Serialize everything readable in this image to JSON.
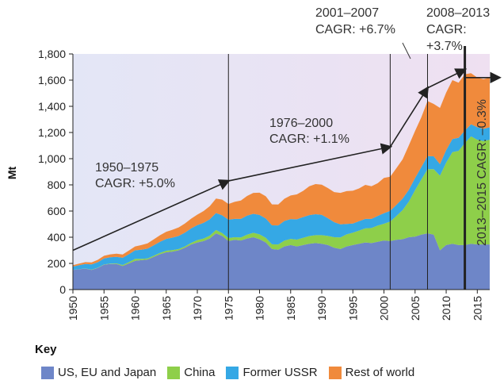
{
  "chart_data": {
    "type": "area",
    "stacked": true,
    "xlabel": "",
    "ylabel": "Mt",
    "xlim": [
      1950,
      2017
    ],
    "ylim": [
      0,
      1800
    ],
    "yticks": [
      0,
      200,
      400,
      600,
      800,
      1000,
      1200,
      1400,
      1600,
      1800
    ],
    "ytick_labels": [
      "0",
      "200",
      "400",
      "600",
      "800",
      "1,000",
      "1,200",
      "1,400",
      "1,600",
      "1,800"
    ],
    "xticks": [
      1950,
      1955,
      1960,
      1965,
      1970,
      1975,
      1980,
      1985,
      1990,
      1995,
      2000,
      2005,
      2010,
      2015
    ],
    "x": [
      1950,
      1951,
      1952,
      1953,
      1954,
      1955,
      1956,
      1957,
      1958,
      1959,
      1960,
      1961,
      1962,
      1963,
      1964,
      1965,
      1966,
      1967,
      1968,
      1969,
      1970,
      1971,
      1972,
      1973,
      1974,
      1975,
      1976,
      1977,
      1978,
      1979,
      1980,
      1981,
      1982,
      1983,
      1984,
      1985,
      1986,
      1987,
      1988,
      1989,
      1990,
      1991,
      1992,
      1993,
      1994,
      1995,
      1996,
      1997,
      1998,
      1999,
      2000,
      2001,
      2002,
      2003,
      2004,
      2005,
      2006,
      2007,
      2008,
      2009,
      2010,
      2011,
      2012,
      2013,
      2014,
      2015,
      2016,
      2017
    ],
    "series": [
      {
        "name": "US, EU and Japan",
        "color": "#6e86c8",
        "values": [
          150,
          155,
          160,
          150,
          165,
          190,
          195,
          195,
          180,
          200,
          220,
          225,
          230,
          250,
          270,
          285,
          290,
          300,
          320,
          345,
          360,
          370,
          390,
          430,
          410,
          370,
          380,
          375,
          390,
          400,
          385,
          360,
          310,
          305,
          330,
          340,
          330,
          340,
          350,
          355,
          350,
          340,
          320,
          310,
          330,
          340,
          350,
          360,
          355,
          365,
          375,
          370,
          380,
          385,
          400,
          405,
          420,
          430,
          420,
          300,
          340,
          350,
          340,
          340,
          350,
          345,
          345,
          345
        ]
      },
      {
        "name": "China",
        "color": "#8ecf4a",
        "values": [
          1,
          1,
          1,
          2,
          2,
          3,
          4,
          5,
          8,
          10,
          15,
          10,
          8,
          9,
          10,
          12,
          12,
          10,
          10,
          12,
          18,
          20,
          22,
          25,
          22,
          24,
          20,
          23,
          30,
          34,
          37,
          35,
          36,
          40,
          44,
          47,
          52,
          56,
          59,
          61,
          66,
          70,
          80,
          89,
          92,
          95,
          101,
          108,
          115,
          124,
          128,
          150,
          182,
          222,
          272,
          355,
          420,
          490,
          500,
          570,
          630,
          700,
          720,
          780,
          820,
          800,
          790,
          800
        ]
      },
      {
        "name": "Former USSR",
        "color": "#35a8e5",
        "values": [
          25,
          30,
          35,
          40,
          42,
          45,
          48,
          50,
          55,
          60,
          65,
          70,
          75,
          80,
          85,
          90,
          95,
          100,
          105,
          110,
          115,
          120,
          125,
          130,
          135,
          140,
          140,
          142,
          145,
          145,
          148,
          148,
          145,
          145,
          150,
          152,
          155,
          158,
          160,
          160,
          155,
          135,
          115,
          100,
          80,
          70,
          72,
          72,
          70,
          74,
          80,
          82,
          85,
          88,
          90,
          92,
          95,
          100,
          98,
          88,
          95,
          100,
          100,
          95,
          93,
          95,
          93,
          95
        ]
      },
      {
        "name": "Rest of world",
        "color": "#f08a3c",
        "values": [
          10,
          12,
          14,
          16,
          18,
          20,
          22,
          24,
          25,
          28,
          30,
          35,
          40,
          45,
          50,
          55,
          60,
          65,
          70,
          75,
          80,
          90,
          100,
          110,
          120,
          120,
          130,
          140,
          150,
          160,
          170,
          170,
          160,
          160,
          170,
          180,
          190,
          200,
          220,
          230,
          230,
          230,
          230,
          240,
          250,
          250,
          250,
          260,
          250,
          250,
          270,
          260,
          280,
          300,
          340,
          360,
          380,
          420,
          400,
          430,
          440,
          450,
          420,
          430,
          390,
          380,
          380,
          380
        ]
      }
    ],
    "trend": {
      "points": [
        [
          1950,
          300
        ],
        [
          1975,
          830
        ],
        [
          2001,
          1090
        ],
        [
          2007,
          1540
        ],
        [
          2013,
          1680
        ]
      ],
      "arrow_end": [
        2017,
        1680
      ]
    },
    "vlines": [
      1975,
      2001,
      2007
    ],
    "vline_thick": 2013
  },
  "annotations": {
    "p1_years": "1950–1975",
    "p1_cagr": "CAGR: +5.0%",
    "p2_years": "1976–2000",
    "p2_cagr": "CAGR: +1.1%",
    "p3_years": "2001–2007",
    "p3_cagr": "CAGR: +6.7%",
    "p4_years": "2008–2013",
    "p4_cagr1": "CAGR:",
    "p4_cagr2": "+3.7%",
    "p5": "2013–2015 CAGR: –0.3%"
  },
  "key": {
    "title": "Key",
    "items": [
      {
        "label": "US, EU and Japan",
        "color": "#6e86c8"
      },
      {
        "label": "China",
        "color": "#8ecf4a"
      },
      {
        "label": "Former USSR",
        "color": "#35a8e5"
      },
      {
        "label": "Rest of world",
        "color": "#f08a3c"
      }
    ]
  }
}
